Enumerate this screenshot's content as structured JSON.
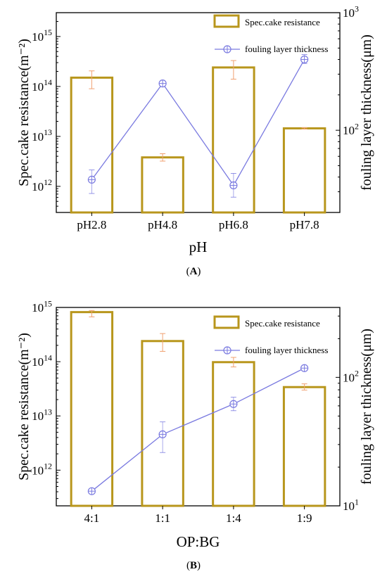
{
  "colors": {
    "bar_stroke": "#b8961c",
    "line": "#7a7ae0",
    "error_bar": "#f0a070",
    "axis": "#000000"
  },
  "chart_data": [
    {
      "type": "bar",
      "panel_label": "A",
      "categories": [
        "pH2.8",
        "pH4.8",
        "pH6.8",
        "pH7.8"
      ],
      "xlabel": "pH",
      "ylabel": "Spec.cake resistance(m⁻²)",
      "ylabel_right": "fouling layer thickness(μm)",
      "y_scale": "log",
      "ylim": [
        300000000000.0,
        3000000000000000.0
      ],
      "y_ticks": [
        {
          "value": 1000000000000.0,
          "label": "10",
          "exp": "12"
        },
        {
          "value": 10000000000000.0,
          "label": "10",
          "exp": "13"
        },
        {
          "value": 100000000000000.0,
          "label": "10",
          "exp": "14"
        },
        {
          "value": 1000000000000000.0,
          "label": "10",
          "exp": "15"
        }
      ],
      "y2_scale": "log",
      "y2lim": [
        20,
        1000
      ],
      "y2_ticks": [
        {
          "value": 100,
          "label": "10",
          "exp": "2"
        },
        {
          "value": 1000,
          "label": "10",
          "exp": "3"
        }
      ],
      "series": [
        {
          "name": "Spec.cake resistance",
          "kind": "bar",
          "axis": "left",
          "values": [
            150000000000000.0,
            3800000000000.0,
            240000000000000.0,
            14500000000000.0
          ],
          "err_low": [
            90000000000000.0,
            3200000000000.0,
            140000000000000.0,
            14000000000000.0
          ],
          "err_high": [
            205000000000000.0,
            4500000000000.0,
            330000000000000.0,
            15000000000000.0
          ]
        },
        {
          "name": "fouling layer thickness",
          "kind": "line",
          "axis": "right",
          "values": [
            38,
            250,
            34,
            400
          ],
          "err_low": [
            29,
            245,
            27,
            370
          ],
          "err_high": [
            46,
            255,
            43,
            440
          ]
        }
      ],
      "legend_position": "top-right"
    },
    {
      "type": "bar",
      "panel_label": "B",
      "categories": [
        "4:1",
        "1:1",
        "1:4",
        "1:9"
      ],
      "xlabel": "OP:BG",
      "ylabel": "Spec.cake resistance(m⁻²)",
      "ylabel_right": "fouling layer thickness(μm)",
      "y_scale": "log",
      "ylim": [
        220000000000.0,
        1000000000000000.0
      ],
      "y_ticks": [
        {
          "value": 1000000000000.0,
          "label": "10",
          "exp": "12"
        },
        {
          "value": 10000000000000.0,
          "label": "10",
          "exp": "13"
        },
        {
          "value": 100000000000000.0,
          "label": "10",
          "exp": "14"
        },
        {
          "value": 1000000000000000.0,
          "label": "10",
          "exp": "15"
        }
      ],
      "y2_scale": "log",
      "y2lim": [
        10,
        350
      ],
      "y2_ticks": [
        {
          "value": 10,
          "label": "10",
          "exp": "1"
        },
        {
          "value": 100,
          "label": "10",
          "exp": "2"
        }
      ],
      "series": [
        {
          "name": "Spec.cake resistance",
          "kind": "bar",
          "axis": "left",
          "values": [
            820000000000000.0,
            240000000000000.0,
            98000000000000.0,
            34000000000000.0
          ],
          "err_low": [
            670000000000000.0,
            155000000000000.0,
            80000000000000.0,
            30000000000000.0
          ],
          "err_high": [
            880000000000000.0,
            330000000000000.0,
            120000000000000.0,
            39000000000000.0
          ]
        },
        {
          "name": "fouling layer thickness",
          "kind": "line",
          "axis": "right",
          "values": [
            13,
            36,
            62,
            118
          ],
          "err_low": [
            13,
            26,
            55,
            118
          ],
          "err_high": [
            13,
            45,
            70,
            118
          ]
        }
      ],
      "legend_position": "top-right"
    }
  ]
}
